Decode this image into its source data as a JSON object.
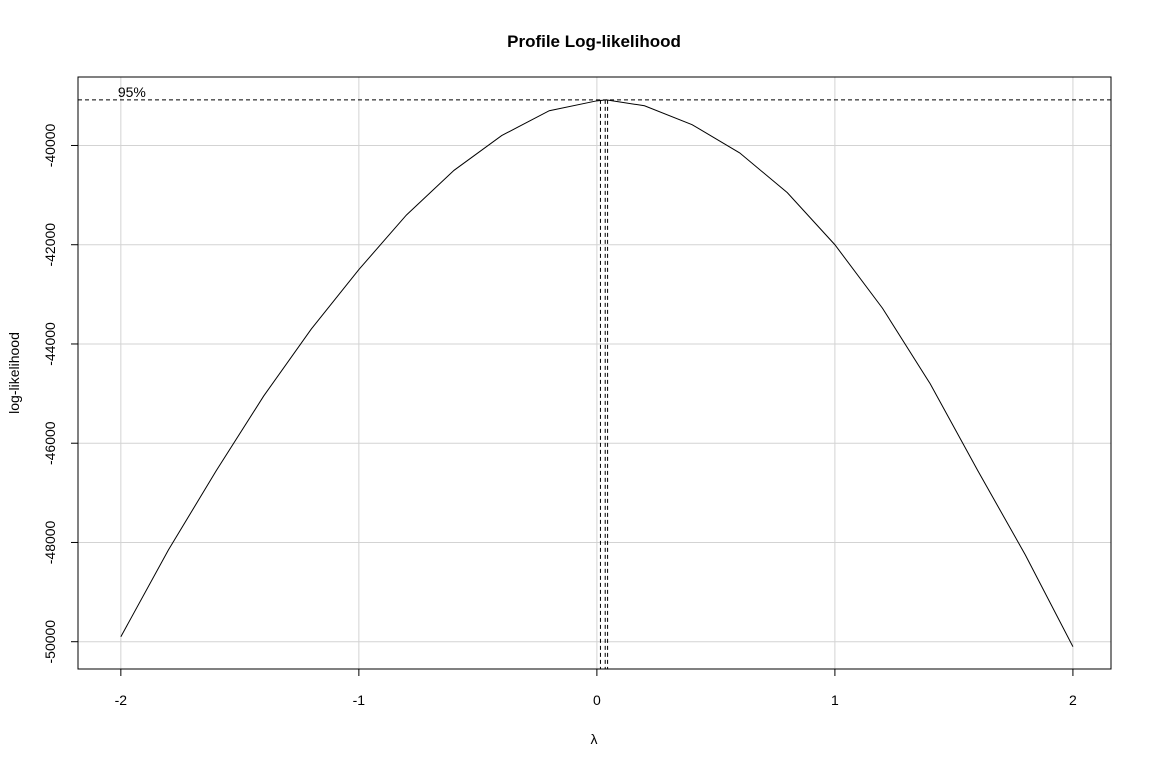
{
  "chart_data": {
    "type": "line",
    "title": "Profile Log-likelihood",
    "xlabel": "λ",
    "ylabel": "log-likelihood",
    "xlim": [
      -2.18,
      2.16
    ],
    "ylim": [
      -50550,
      -38620
    ],
    "x_ticks": [
      -2,
      -1,
      0,
      1,
      2
    ],
    "x_tick_labels": [
      "-2",
      "-1",
      "0",
      "1",
      "2"
    ],
    "y_ticks": [
      -50000,
      -48000,
      -46000,
      -44000,
      -42000,
      -40000
    ],
    "y_tick_labels": [
      "-50000",
      "-48000",
      "-46000",
      "-44000",
      "-42000",
      "-40000"
    ],
    "grid": true,
    "series": [
      {
        "x": [
          -2.0,
          -1.8,
          -1.6,
          -1.4,
          -1.2,
          -1.0,
          -0.8,
          -0.6,
          -0.4,
          -0.2,
          0.0,
          0.04,
          0.2,
          0.4,
          0.6,
          0.8,
          1.0,
          1.2,
          1.4,
          1.6,
          1.8,
          2.0
        ],
        "y": [
          -49900,
          -48150,
          -46560,
          -45050,
          -43700,
          -42500,
          -41400,
          -40500,
          -39800,
          -39300,
          -39100,
          -39080,
          -39200,
          -39580,
          -40150,
          -40950,
          -42000,
          -43280,
          -44800,
          -46550,
          -48250,
          -50100
        ]
      }
    ],
    "annotations": [
      {
        "text": "95%",
        "type": "hline",
        "y": -39080
      },
      {
        "type": "vline",
        "x": 0.015
      },
      {
        "type": "vline",
        "x": 0.035
      },
      {
        "type": "vline",
        "x": 0.045
      }
    ]
  }
}
